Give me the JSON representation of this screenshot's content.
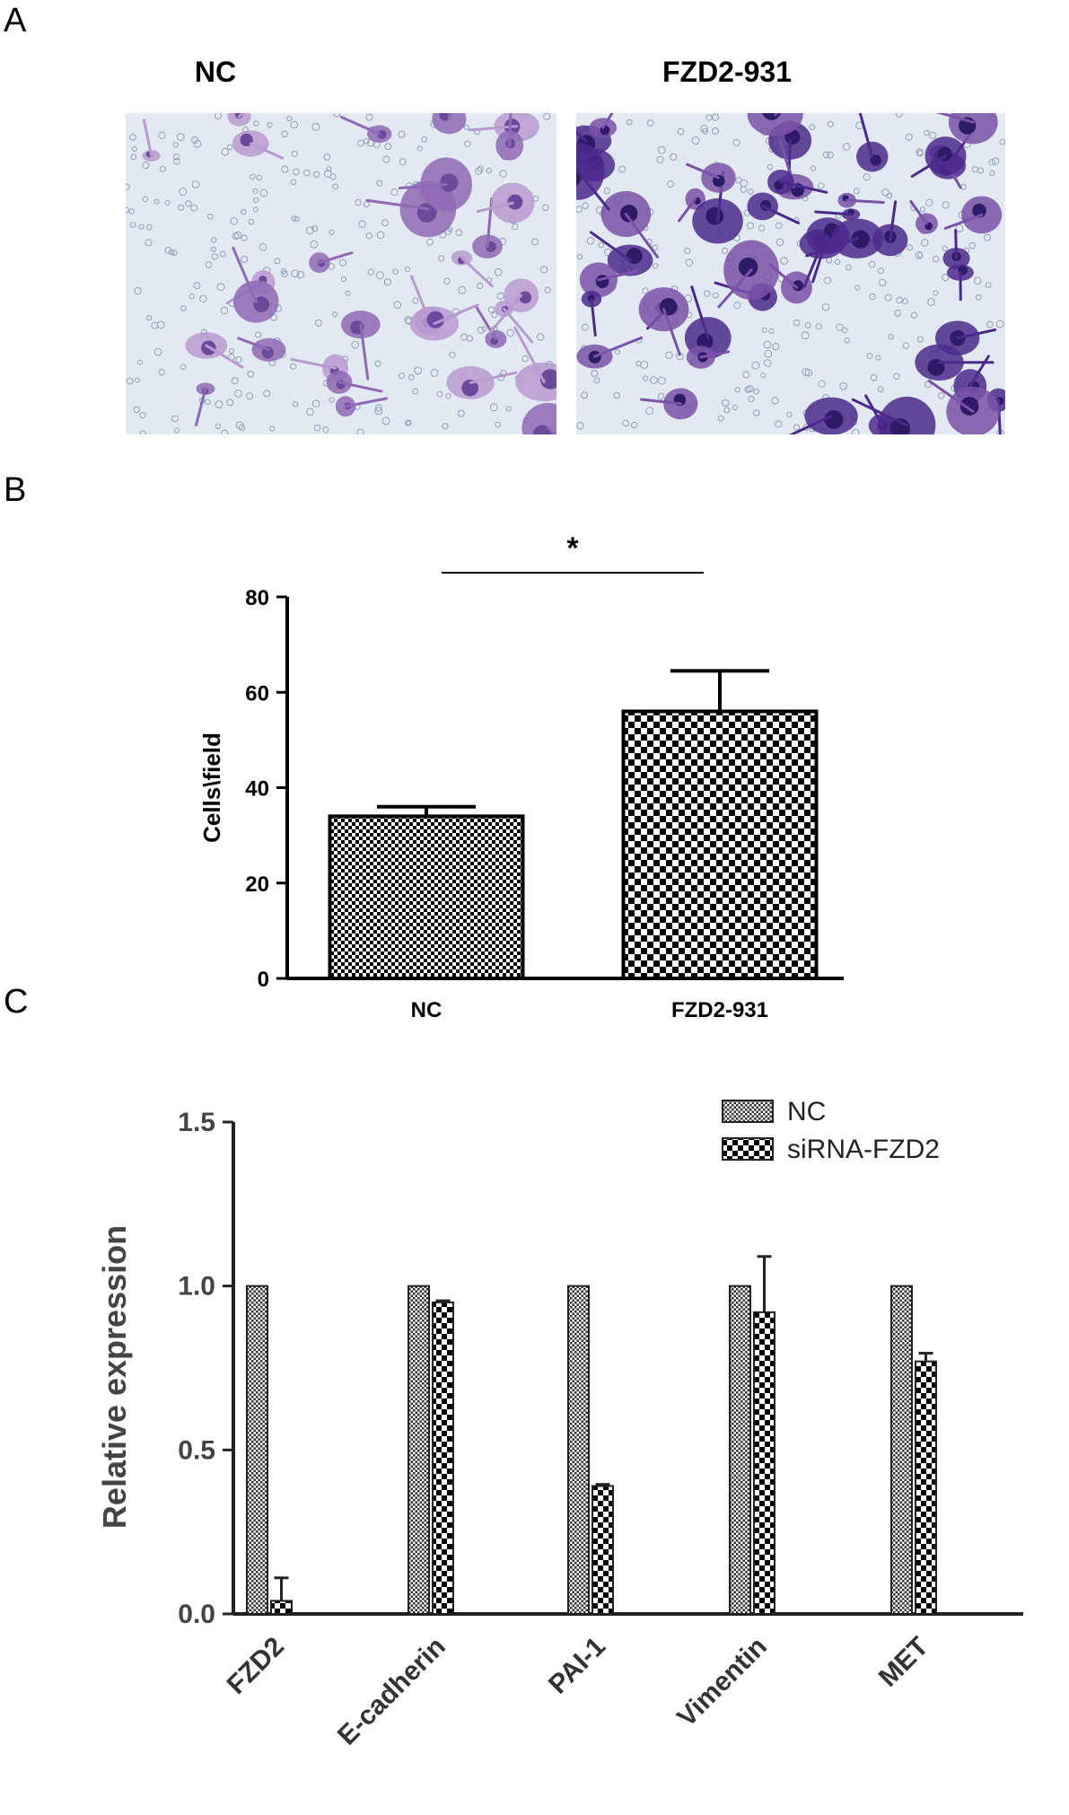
{
  "panels": {
    "a": {
      "letter": "A",
      "left_title": "NC",
      "right_title": "FZD2-931"
    },
    "b": {
      "letter": "B"
    },
    "c": {
      "letter": "C"
    }
  },
  "chart_data": [
    {
      "type": "bar",
      "panel": "B",
      "categories": [
        "NC",
        "FZD2-931"
      ],
      "values": [
        34,
        56
      ],
      "errors": [
        2,
        8.5
      ],
      "ylabel": "Cells\\field",
      "xlabel": "",
      "ylim": [
        0,
        80
      ],
      "yticks": [
        0,
        20,
        40,
        60,
        80
      ],
      "significance": "*",
      "legend": "none",
      "grid": false
    },
    {
      "type": "bar",
      "panel": "C",
      "categories": [
        "FZD2",
        "E-cadherin",
        "PAI-1",
        "Vimentin",
        "MET"
      ],
      "series": [
        {
          "name": "NC",
          "values": [
            1.0,
            1.0,
            1.0,
            1.0,
            1.0
          ],
          "errors": [
            0,
            0,
            0,
            0,
            0
          ]
        },
        {
          "name": "siRNA-FZD2",
          "values": [
            0.04,
            0.95,
            0.39,
            0.92,
            0.77
          ],
          "errors": [
            0.07,
            0.005,
            0.005,
            0.17,
            0.025
          ]
        }
      ],
      "ylabel": "Relative expression",
      "xlabel": "",
      "ylim": [
        0,
        1.5
      ],
      "yticks": [
        "0.0",
        "0.5",
        "1.0",
        "1.5"
      ],
      "legend": "top-right",
      "grid": false
    }
  ]
}
